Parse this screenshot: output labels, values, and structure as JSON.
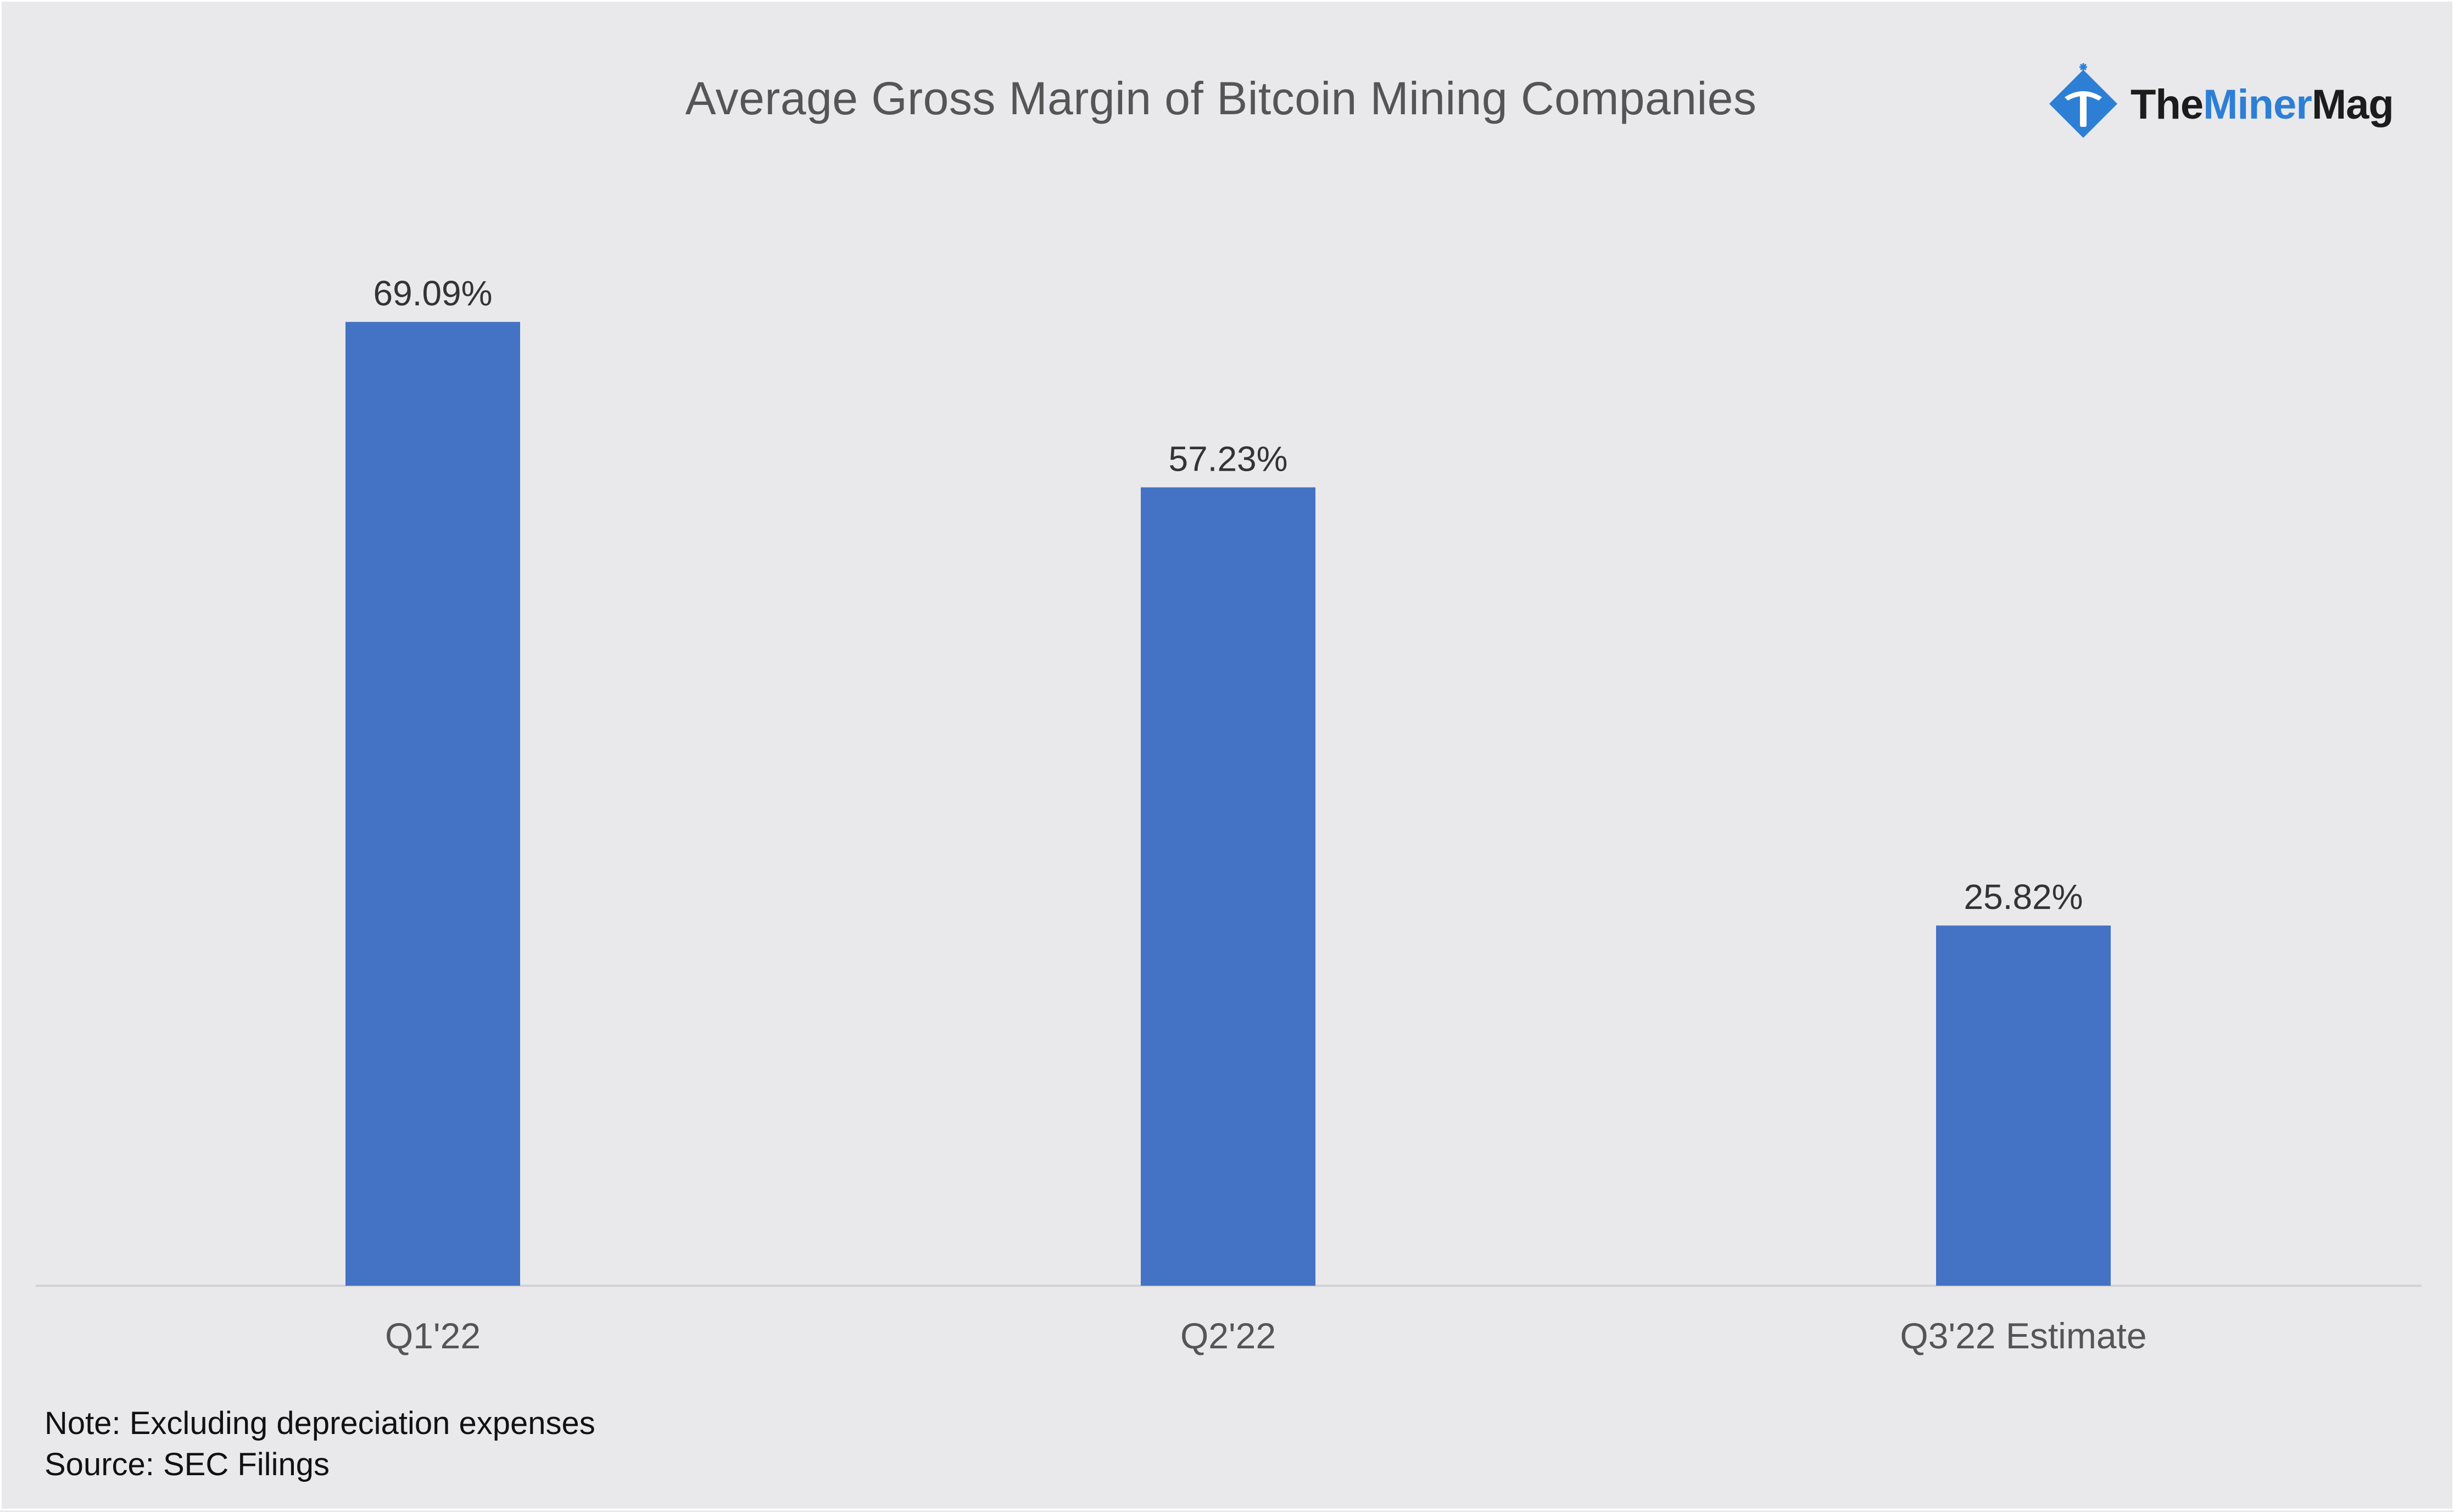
{
  "chart_data": {
    "type": "bar",
    "title": "Average Gross Margin of Bitcoin Mining Companies",
    "categories": [
      "Q1'22",
      "Q2'22",
      "Q3'22 Estimate"
    ],
    "values": [
      69.09,
      57.23,
      25.82
    ],
    "value_labels": [
      "69.09%",
      "57.23%",
      "25.82%"
    ],
    "unit": "%",
    "xlabel": "",
    "ylabel": "",
    "ylim": [
      0,
      78
    ],
    "grid": false,
    "colors": {
      "bar": "#4472c4",
      "baseline": "#d2d2d6",
      "background": "#e9e9eb"
    }
  },
  "branding": {
    "logo_parts": [
      "The",
      "Miner",
      "Mag"
    ],
    "logo_icon": "pickaxe-diamond-icon",
    "colors": {
      "icon": "#2d7fd6"
    }
  },
  "footnotes": {
    "note": "Note: Excluding depreciation expenses",
    "source": "Source: SEC Filings"
  }
}
